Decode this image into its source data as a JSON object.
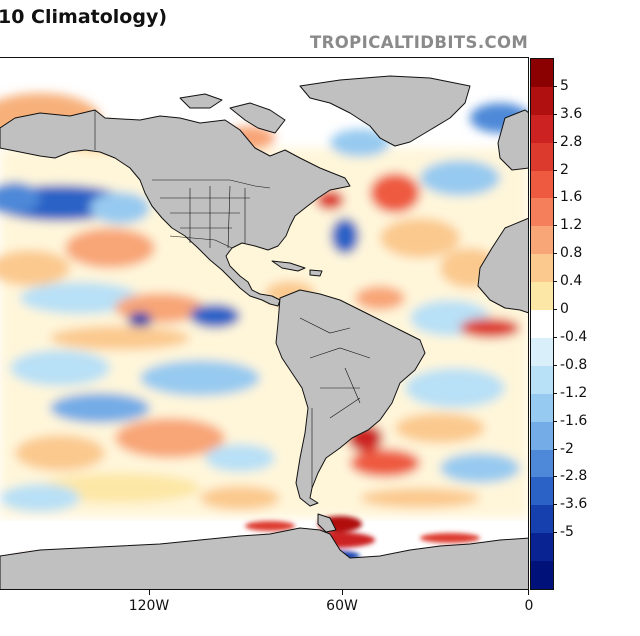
{
  "header": {
    "title": "10 Climatology)",
    "watermark": "TROPICALTIDBITS.COM"
  },
  "map": {
    "x_axis_labels": [
      "120W",
      "60W",
      "0"
    ],
    "x_axis_lons": [
      -120,
      -60,
      0
    ],
    "land_color": "#c0c0c0",
    "ocean_color": "#ffffff",
    "border_color": "#111111"
  },
  "colorbar": {
    "labels": [
      "5",
      "3.6",
      "2.8",
      "2",
      "1.6",
      "1.2",
      "0.8",
      "0.4",
      "0",
      "-0.4",
      "-0.8",
      "-1.2",
      "-1.6",
      "-2",
      "-2.8",
      "-3.6",
      "-5"
    ],
    "colors": [
      "#8b0000",
      "#b11010",
      "#cc2222",
      "#dd3a2e",
      "#ee5a40",
      "#f47f5a",
      "#f8a577",
      "#fbc98e",
      "#fde7a6",
      "#ffffff",
      "#d9f0fb",
      "#b8e0f6",
      "#97caf0",
      "#73ace6",
      "#4d89d8",
      "#2b62c6",
      "#1640ad",
      "#0a2392",
      "#00117a"
    ]
  }
}
